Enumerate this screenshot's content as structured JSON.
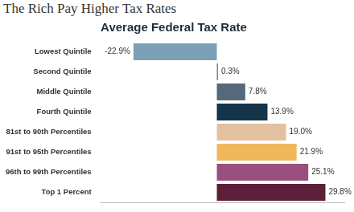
{
  "chart_data": {
    "type": "bar",
    "orientation": "horizontal",
    "title": "The Rich Pay Higher Tax Rates",
    "subtitle": "Average Federal Tax Rate",
    "categories": [
      "Lowest Quintile",
      "Second Quintile",
      "Middle Quintile",
      "Fourth Quintile",
      "81st to 90th Percentiles",
      "91st to 95th Percentiles",
      "96th to 99th Percentiles",
      "Top 1 Percent"
    ],
    "values": [
      -22.9,
      0.3,
      7.8,
      13.9,
      19.0,
      21.9,
      25.1,
      29.8
    ],
    "value_labels": [
      "-22.9%",
      "0.3%",
      "7.8%",
      "13.9%",
      "19.0%",
      "21.9%",
      "25.1%",
      "29.8%"
    ],
    "colors": [
      "#7d9fb5",
      "#5d7f98",
      "#56697a",
      "#14344a",
      "#e3c09e",
      "#f0b85a",
      "#9b4f7e",
      "#5c1f3a"
    ],
    "xlim": [
      -32,
      35
    ],
    "grid": false,
    "data_labels": true,
    "tick_labels": "y"
  }
}
